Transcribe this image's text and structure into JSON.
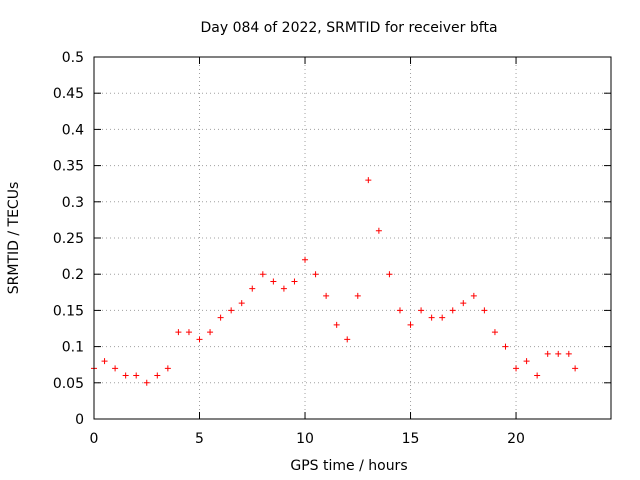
{
  "chart_data": {
    "type": "scatter",
    "title": "Day 084 of 2022, SRMTID for receiver bfta",
    "xlabel": "GPS time / hours",
    "ylabel": "SRMTID / TECUs",
    "xlim": [
      0,
      24.5
    ],
    "ylim": [
      0,
      0.5
    ],
    "xticks": [
      0,
      5,
      10,
      15,
      20
    ],
    "xtick_labels": [
      "0",
      "5",
      "10",
      "15",
      "20"
    ],
    "yticks": [
      0,
      0.05,
      0.1,
      0.15,
      0.2,
      0.25,
      0.3,
      0.35,
      0.4,
      0.45,
      0.5
    ],
    "ytick_labels": [
      "0",
      "0.05",
      "0.1",
      "0.15",
      "0.2",
      "0.25",
      "0.3",
      "0.35",
      "0.4",
      "0.45",
      "0.5"
    ],
    "grid": true,
    "marker": "+",
    "color": "#ff0000",
    "series": [
      {
        "name": "SRMTID",
        "x": [
          0.0,
          0.5,
          1.0,
          1.5,
          2.0,
          2.5,
          3.0,
          3.5,
          4.0,
          4.5,
          5.0,
          5.5,
          6.0,
          6.5,
          7.0,
          7.5,
          8.0,
          8.5,
          9.0,
          9.5,
          10.0,
          10.5,
          11.0,
          11.5,
          12.0,
          12.5,
          13.0,
          13.5,
          14.0,
          14.5,
          15.0,
          15.5,
          16.0,
          16.5,
          17.0,
          17.5,
          18.0,
          18.5,
          19.0,
          19.5,
          20.0,
          20.5,
          21.0,
          21.5,
          22.0,
          22.5,
          22.8
        ],
        "y": [
          0.07,
          0.08,
          0.07,
          0.06,
          0.06,
          0.05,
          0.06,
          0.07,
          0.12,
          0.12,
          0.11,
          0.12,
          0.14,
          0.15,
          0.16,
          0.18,
          0.2,
          0.19,
          0.18,
          0.19,
          0.22,
          0.2,
          0.17,
          0.13,
          0.11,
          0.17,
          0.33,
          0.26,
          0.2,
          0.15,
          0.13,
          0.15,
          0.14,
          0.14,
          0.15,
          0.16,
          0.17,
          0.15,
          0.12,
          0.1,
          0.07,
          0.08,
          0.06,
          0.09,
          0.09,
          0.09,
          0.07
        ]
      }
    ]
  }
}
